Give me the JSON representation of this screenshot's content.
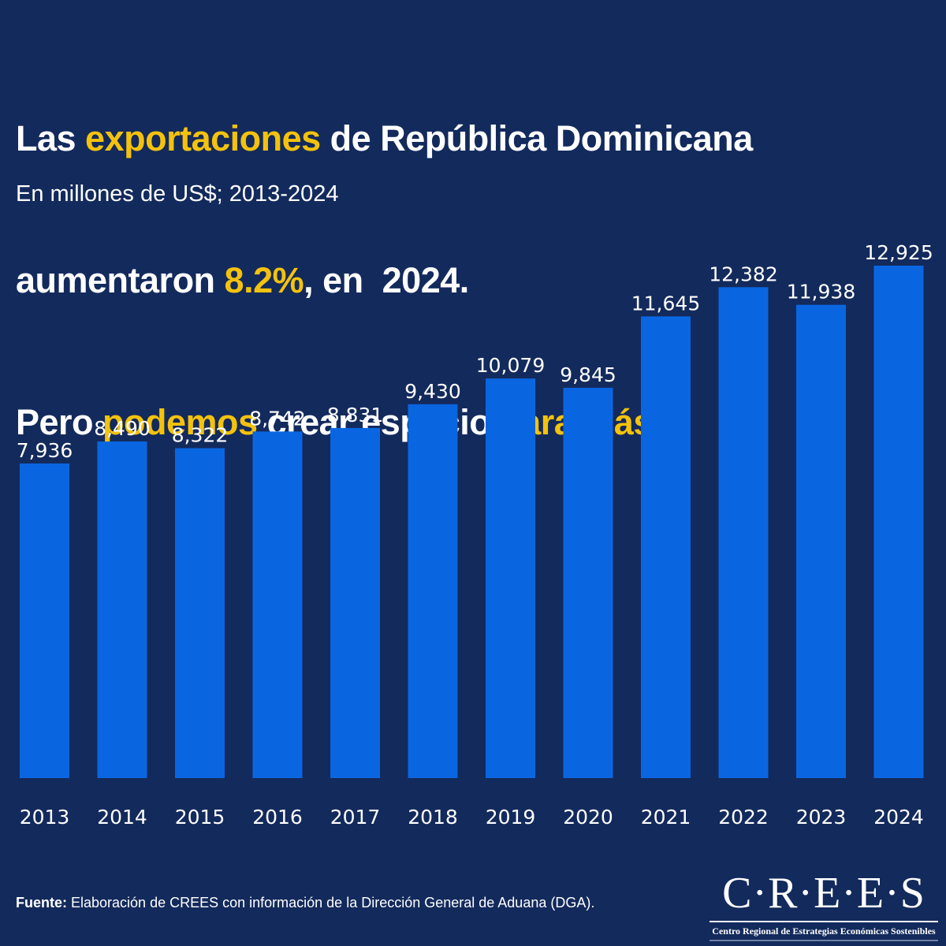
{
  "title": {
    "line1": [
      {
        "text": "Las ",
        "highlight": false
      },
      {
        "text": "exportaciones",
        "highlight": true
      },
      {
        "text": " de República Dominicana",
        "highlight": false
      }
    ],
    "line2": [
      {
        "text": "aumentaron ",
        "highlight": false
      },
      {
        "text": "8.2%",
        "highlight": true
      },
      {
        "text": ", en  2024.",
        "highlight": false
      }
    ],
    "line3": [
      {
        "text": "Pero ",
        "highlight": false
      },
      {
        "text": "podemos",
        "highlight": true
      },
      {
        "text": " crear espacio ",
        "highlight": false
      },
      {
        "text": "para más",
        "highlight": true
      }
    ]
  },
  "subtitle": "En millones de US$; 2013-2024",
  "source": {
    "label": "Fuente:",
    "text": " Elaboración de CREES con información de la Dirección General de Aduana (DGA)."
  },
  "logo": {
    "mark": "C·R·E·E·S",
    "tagline": "Centro Regional de Estrategias Económicas Sostenibles"
  },
  "colors": {
    "background": "#132a5c",
    "bar": "#0a66e0",
    "highlight": "#f4c20d",
    "text": "#ffffff"
  },
  "chart_data": {
    "type": "bar",
    "title": "Las exportaciones de República Dominicana aumentaron 8.2%, en 2024. Pero podemos crear espacio para más",
    "subtitle": "En millones de US$; 2013-2024",
    "xlabel": "",
    "ylabel": "",
    "categories": [
      "2013",
      "2014",
      "2015",
      "2016",
      "2017",
      "2018",
      "2019",
      "2020",
      "2021",
      "2022",
      "2023",
      "2024"
    ],
    "values": [
      7936,
      8490,
      8322,
      8742,
      8831,
      9430,
      10079,
      9845,
      11645,
      12382,
      11938,
      12925
    ],
    "value_labels": [
      "7,936",
      "8,490",
      "8,322",
      "8,742",
      "8,831",
      "9,430",
      "10,079",
      "9,845",
      "11,645",
      "12,382",
      "11,938",
      "12,925"
    ],
    "ylim": [
      0,
      12925
    ],
    "grid": false,
    "y_axis_visible": false,
    "legend": "none"
  }
}
